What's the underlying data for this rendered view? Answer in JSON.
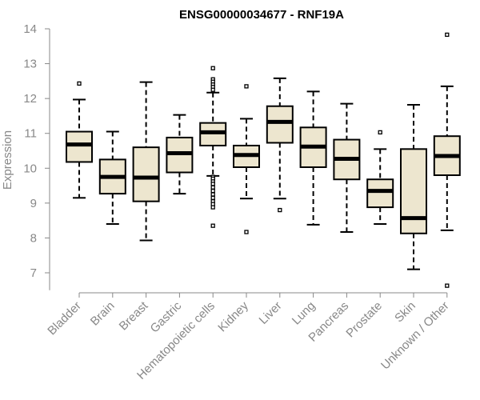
{
  "chart_data": {
    "type": "boxplot",
    "title": "ENSG00000034677 - RNF19A",
    "xlabel": "",
    "ylabel": "Expression",
    "ylim": [
      6.5,
      14
    ],
    "yticks": [
      "7",
      "8",
      "9",
      "10",
      "11",
      "12",
      "13",
      "14"
    ],
    "grid": false,
    "box_fill": "#EDE6CF",
    "categories": [
      "Bladder",
      "Brain",
      "Breast",
      "Gastric",
      "Hematopoietic cells",
      "Kidney",
      "Liver",
      "Lung",
      "Pancreas",
      "Prostate",
      "Skin",
      "Unknown / Other"
    ],
    "boxes": [
      {
        "whisker_low": 9.15,
        "q1": 10.18,
        "median": 10.68,
        "q3": 11.05,
        "whisker_high": 11.97,
        "outliers": [
          12.43
        ]
      },
      {
        "whisker_low": 8.4,
        "q1": 9.27,
        "median": 9.75,
        "q3": 10.25,
        "whisker_high": 11.05,
        "outliers": []
      },
      {
        "whisker_low": 7.93,
        "q1": 9.05,
        "median": 9.73,
        "q3": 10.6,
        "whisker_high": 12.47,
        "outliers": []
      },
      {
        "whisker_low": 9.27,
        "q1": 9.88,
        "median": 10.43,
        "q3": 10.88,
        "whisker_high": 11.53,
        "outliers": []
      },
      {
        "whisker_low": 9.78,
        "q1": 10.65,
        "median": 11.03,
        "q3": 11.3,
        "whisker_high": 12.17,
        "outliers": [
          12.87,
          12.55,
          12.48,
          12.4,
          12.33,
          12.25,
          9.75,
          9.7,
          9.62,
          9.55,
          9.45,
          9.35,
          9.25,
          9.15,
          9.05,
          8.97,
          8.88,
          8.35
        ]
      },
      {
        "whisker_low": 9.13,
        "q1": 10.03,
        "median": 10.38,
        "q3": 10.65,
        "whisker_high": 11.42,
        "outliers": [
          12.35,
          8.17
        ]
      },
      {
        "whisker_low": 9.13,
        "q1": 10.73,
        "median": 11.33,
        "q3": 11.78,
        "whisker_high": 12.58,
        "outliers": [
          8.8
        ]
      },
      {
        "whisker_low": 8.38,
        "q1": 10.03,
        "median": 10.62,
        "q3": 11.17,
        "whisker_high": 12.2,
        "outliers": []
      },
      {
        "whisker_low": 8.17,
        "q1": 9.68,
        "median": 10.27,
        "q3": 10.82,
        "whisker_high": 11.85,
        "outliers": []
      },
      {
        "whisker_low": 8.4,
        "q1": 8.88,
        "median": 9.35,
        "q3": 9.68,
        "whisker_high": 10.55,
        "outliers": [
          11.03
        ]
      },
      {
        "whisker_low": 7.1,
        "q1": 8.13,
        "median": 8.57,
        "q3": 10.55,
        "whisker_high": 11.82,
        "outliers": []
      },
      {
        "whisker_low": 8.22,
        "q1": 9.8,
        "median": 10.35,
        "q3": 10.92,
        "whisker_high": 12.35,
        "outliers": [
          13.83,
          6.63
        ]
      }
    ]
  }
}
